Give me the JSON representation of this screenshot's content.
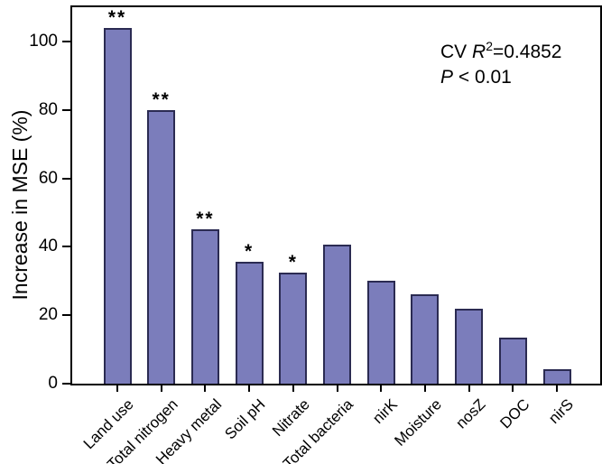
{
  "figure": {
    "ylabel": "Increase in MSE (%)",
    "annotation": {
      "line1_prefix": "CV ",
      "line1_var": "R",
      "line1_sup": "2",
      "line1_suffix": "=0.4852",
      "line2_var": "P",
      "line2_suffix": " < 0.01"
    }
  },
  "chart_data": {
    "type": "bar",
    "title": "",
    "xlabel": "",
    "ylabel": "Increase in MSE (%)",
    "categories": [
      "Land use",
      "Total nitrogen",
      "Heavy metal",
      "Soil pH",
      "Nitrate",
      "Total bacteria",
      "nirK",
      "Moisture",
      "nosZ",
      "DOC",
      "nirS"
    ],
    "values": [
      104,
      80,
      45,
      35.5,
      32.5,
      40.5,
      30,
      26,
      22,
      13.5,
      4.2
    ],
    "significance": [
      "**",
      "**",
      "**",
      "*",
      "*",
      "",
      "",
      "",
      "",
      "",
      ""
    ],
    "yticks": [
      0,
      20,
      40,
      60,
      80,
      100
    ],
    "ylim": [
      0,
      110
    ],
    "grid": false,
    "legend_position": "none",
    "annotation_text": "CV R2=0.4852, P < 0.01",
    "colors": {
      "bar_fill": "#7b7dbb",
      "bar_border": "#2b2b52",
      "axis": "#000000",
      "text": "#000000",
      "background": "#ffffff"
    }
  }
}
